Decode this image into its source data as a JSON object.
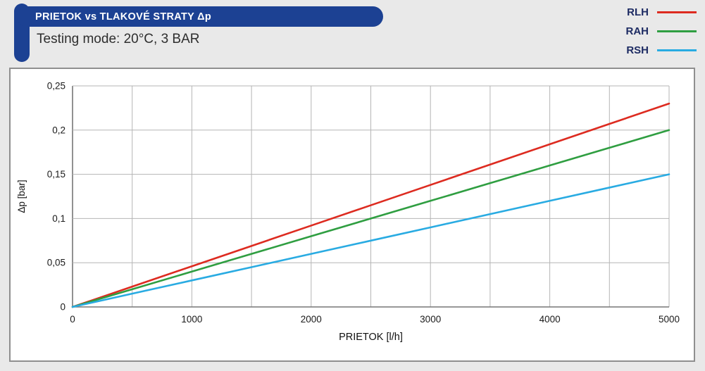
{
  "header": {
    "title": "PRIETOK  vs  TLAKOVÉ STRATY Δp",
    "subtitle": "Testing mode: 20°C, 3 BAR"
  },
  "colors": {
    "banner_navy": "#1c4193",
    "background": "#e9e9e9",
    "grid": "#b5b5b5",
    "axis": "#767676",
    "rlh_red": "#dd2b20",
    "rah_green": "#2f9e41",
    "rsh_blue": "#29abe2"
  },
  "chart_data": {
    "type": "line",
    "title": "PRIETOK vs TLAKOVÉ STRATY Δp",
    "subtitle": "Testing mode: 20°C, 3 BAR",
    "x": [
      0,
      500,
      1000,
      1500,
      2000,
      2500,
      3000,
      3500,
      4000,
      4500,
      5000
    ],
    "series": [
      {
        "name": "RLH",
        "color": "#dd2b20",
        "values": [
          0,
          0.023,
          0.046,
          0.069,
          0.092,
          0.115,
          0.138,
          0.161,
          0.184,
          0.207,
          0.23
        ]
      },
      {
        "name": "RAH",
        "color": "#2f9e41",
        "values": [
          0,
          0.02,
          0.04,
          0.06,
          0.08,
          0.1,
          0.12,
          0.14,
          0.16,
          0.18,
          0.2
        ]
      },
      {
        "name": "RSH",
        "color": "#29abe2",
        "values": [
          0,
          0.015,
          0.03,
          0.045,
          0.06,
          0.075,
          0.09,
          0.105,
          0.12,
          0.135,
          0.15
        ]
      }
    ],
    "xlabel": "PRIETOK [l/h]",
    "ylabel": "Δp [bar]",
    "xlim": [
      0,
      5000
    ],
    "ylim": [
      0,
      0.25
    ],
    "x_grid_step": 500,
    "x_ticks": [
      {
        "v": 0,
        "label": "0"
      },
      {
        "v": 1000,
        "label": "1000"
      },
      {
        "v": 2000,
        "label": "2000"
      },
      {
        "v": 3000,
        "label": "3000"
      },
      {
        "v": 4000,
        "label": "4000"
      },
      {
        "v": 5000,
        "label": "5000"
      }
    ],
    "y_ticks": [
      {
        "v": 0,
        "label": "0"
      },
      {
        "v": 0.05,
        "label": "0,05"
      },
      {
        "v": 0.1,
        "label": "0,1"
      },
      {
        "v": 0.15,
        "label": "0,15"
      },
      {
        "v": 0.2,
        "label": "0,2"
      },
      {
        "v": 0.25,
        "label": "0,25"
      }
    ],
    "grid": true,
    "legend_position": "top-right"
  }
}
